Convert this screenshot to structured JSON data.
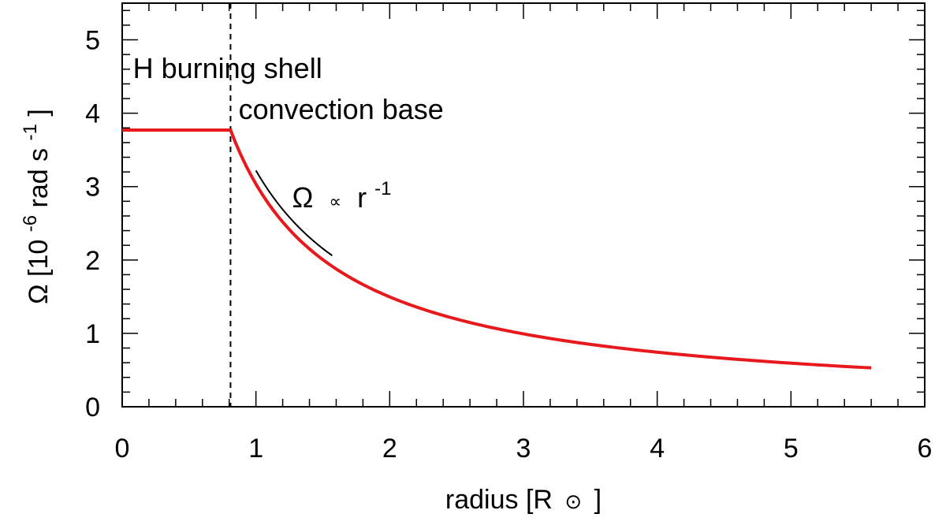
{
  "chart_data": {
    "type": "line",
    "xlim": [
      0,
      6
    ],
    "ylim": [
      0,
      5.5
    ],
    "x_ticks": [
      0,
      1,
      2,
      3,
      4,
      5,
      6
    ],
    "y_ticks": [
      0,
      1,
      2,
      3,
      4,
      5
    ],
    "x_minor_step": 0.2,
    "y_minor_step": 0.2,
    "xlabel": {
      "main": "radius [R",
      "symbol": "⊙",
      "close": "]"
    },
    "ylabel": {
      "prefix": "Ω [10",
      "exp1": "-6",
      "mid": " rad s",
      "exp2": "-1",
      "close": "]"
    },
    "grid": false,
    "colors": {
      "profile": "#e8191c",
      "reference": "#000000",
      "boundary": "#000000"
    },
    "boundary": {
      "x": 0.81,
      "style": "dashed"
    },
    "series": [
      {
        "kind": "profile",
        "plateau": {
          "x": [
            0,
            0.81
          ],
          "y": 3.77
        },
        "decay": {
          "x_start": 0.81,
          "x_end": 5.6,
          "y_start": 3.77,
          "y_end": 0.53
        }
      },
      {
        "kind": "reference",
        "x": [
          1.0,
          1.57
        ],
        "y": [
          3.22,
          2.06
        ]
      }
    ],
    "annotations": [
      {
        "id": "h-shell",
        "text": "H burning shell",
        "x": 0.08,
        "y": 4.48
      },
      {
        "id": "conv-base",
        "text": "convection base",
        "x": 0.87,
        "y": 3.92
      },
      {
        "id": "omega-law",
        "prefix": "Ω",
        "prop": "∝",
        "base": "r",
        "exp": "-1",
        "x": 1.27,
        "y": 2.72
      }
    ]
  }
}
